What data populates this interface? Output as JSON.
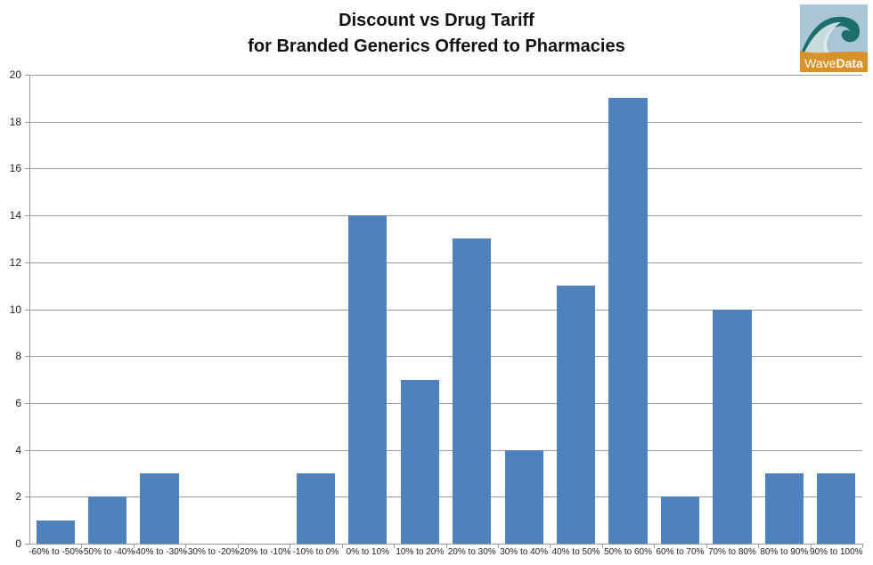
{
  "chart_data": {
    "type": "bar",
    "title": "Discount vs Drug Tariff for Branded Generics Offered to Pharmacies",
    "title_lines": [
      "Discount vs Drug Tariff",
      "for Branded Generics Offered to Pharmacies"
    ],
    "xlabel": "",
    "ylabel": "",
    "categories": [
      "-60% to -50%",
      "-50% to -40%",
      "-40% to -30%",
      "-30% to -20%",
      "-20% to -10%",
      "-10% to 0%",
      "0% to 10%",
      "10% to 20%",
      "20% to 30%",
      "30% to 40%",
      "40% to 50%",
      "50% to 60%",
      "60% to 70%",
      "70% to 80%",
      "80% to 90%",
      "90% to 100%"
    ],
    "values": [
      1,
      2,
      3,
      0,
      0,
      3,
      14,
      7,
      13,
      4,
      11,
      19,
      2,
      10,
      3,
      3
    ],
    "ylim": [
      0,
      20
    ],
    "yticks": [
      0,
      2,
      4,
      6,
      8,
      10,
      12,
      14,
      16,
      18,
      20
    ],
    "grid": true,
    "legend": null,
    "bar_color": "#4f81bd"
  },
  "logo": {
    "text_a": "Wave",
    "text_b": "Data"
  }
}
